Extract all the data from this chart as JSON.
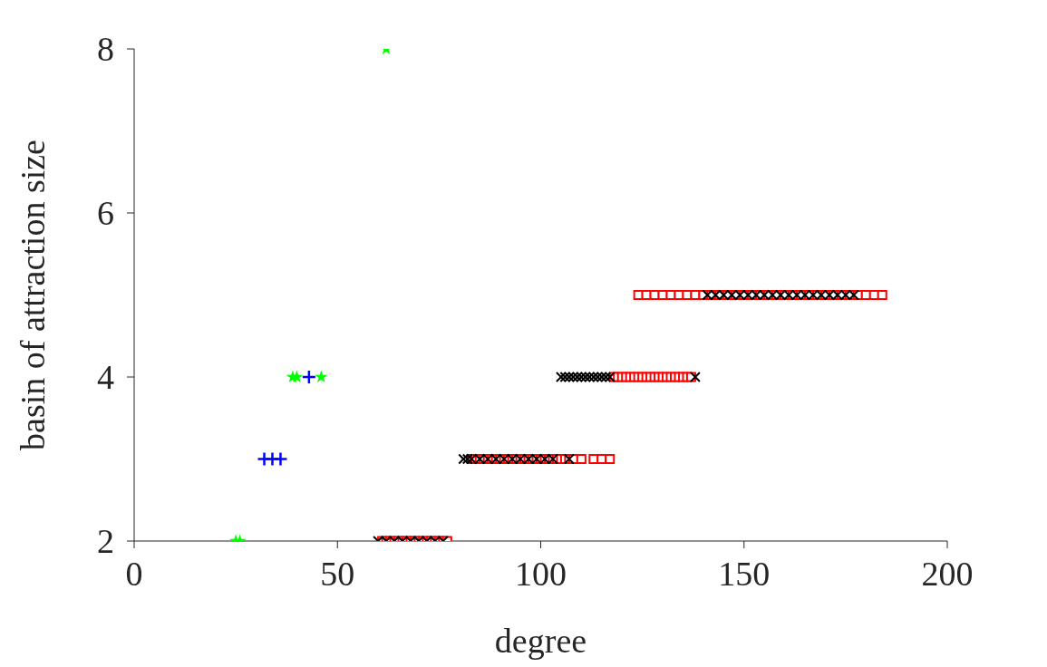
{
  "chart_data": {
    "type": "scatter",
    "xlabel": "degree",
    "ylabel": "basin of attraction size",
    "xlim": [
      0,
      200
    ],
    "xticks": [
      0,
      50,
      100,
      150,
      200
    ],
    "ylim": [
      2,
      8
    ],
    "yticks": [
      2,
      4,
      6,
      8
    ],
    "grid": false,
    "legend": false,
    "series": [
      {
        "color": "#00ff00",
        "marker": "star",
        "x": [
          25,
          26,
          39,
          40,
          46,
          62
        ],
        "values": [
          2,
          2,
          4,
          4,
          4,
          8
        ]
      },
      {
        "color": "#0000ff",
        "marker": "plus",
        "x": [
          32,
          34,
          36,
          43
        ],
        "values": [
          3,
          3,
          3,
          4
        ]
      },
      {
        "color": "#ff0000",
        "marker": "square",
        "x": [
          61,
          62,
          63,
          64,
          65,
          66,
          67,
          68,
          69,
          70,
          71,
          72,
          73,
          74,
          75,
          76,
          77,
          83,
          84,
          85,
          86,
          87,
          88,
          89,
          90,
          91,
          92,
          93,
          94,
          95,
          96,
          97,
          98,
          99,
          100,
          101,
          102,
          103,
          104,
          105,
          106,
          107,
          108,
          110,
          113,
          115,
          117,
          118,
          119,
          120,
          121,
          122,
          123,
          124,
          125,
          126,
          127,
          128,
          129,
          130,
          131,
          132,
          133,
          134,
          135,
          136,
          137,
          124,
          126,
          128,
          130,
          132,
          134,
          136,
          138,
          140,
          142,
          144,
          146,
          148,
          150,
          152,
          154,
          156,
          158,
          160,
          162,
          164,
          166,
          168,
          170,
          172,
          174,
          176,
          178,
          180,
          182,
          184
        ],
        "values": [
          2,
          2,
          2,
          2,
          2,
          2,
          2,
          2,
          2,
          2,
          2,
          2,
          2,
          2,
          2,
          2,
          2,
          3,
          3,
          3,
          3,
          3,
          3,
          3,
          3,
          3,
          3,
          3,
          3,
          3,
          3,
          3,
          3,
          3,
          3,
          3,
          3,
          3,
          3,
          3,
          3,
          3,
          3,
          3,
          3,
          3,
          3,
          4,
          4,
          4,
          4,
          4,
          4,
          4,
          4,
          4,
          4,
          4,
          4,
          4,
          4,
          4,
          4,
          4,
          4,
          4,
          4,
          5,
          5,
          5,
          5,
          5,
          5,
          5,
          5,
          5,
          5,
          5,
          5,
          5,
          5,
          5,
          5,
          5,
          5,
          5,
          5,
          5,
          5,
          5,
          5,
          5,
          5,
          5,
          5,
          5,
          5,
          5
        ]
      },
      {
        "color": "#000000",
        "marker": "cross",
        "x": [
          60,
          62,
          64,
          66,
          68,
          70,
          72,
          74,
          76,
          81,
          82,
          83,
          85,
          87,
          89,
          91,
          93,
          95,
          97,
          99,
          101,
          103,
          107,
          105,
          106,
          107,
          108,
          109,
          110,
          111,
          112,
          113,
          114,
          115,
          116,
          117,
          138,
          141,
          143,
          145,
          147,
          149,
          151,
          153,
          155,
          157,
          159,
          161,
          163,
          165,
          167,
          169,
          171,
          173,
          175,
          177
        ],
        "values": [
          2,
          2,
          2,
          2,
          2,
          2,
          2,
          2,
          2,
          3,
          3,
          3,
          3,
          3,
          3,
          3,
          3,
          3,
          3,
          3,
          3,
          3,
          3,
          4,
          4,
          4,
          4,
          4,
          4,
          4,
          4,
          4,
          4,
          4,
          4,
          4,
          4,
          5,
          5,
          5,
          5,
          5,
          5,
          5,
          5,
          5,
          5,
          5,
          5,
          5,
          5,
          5,
          5,
          5,
          5,
          5
        ]
      }
    ]
  }
}
